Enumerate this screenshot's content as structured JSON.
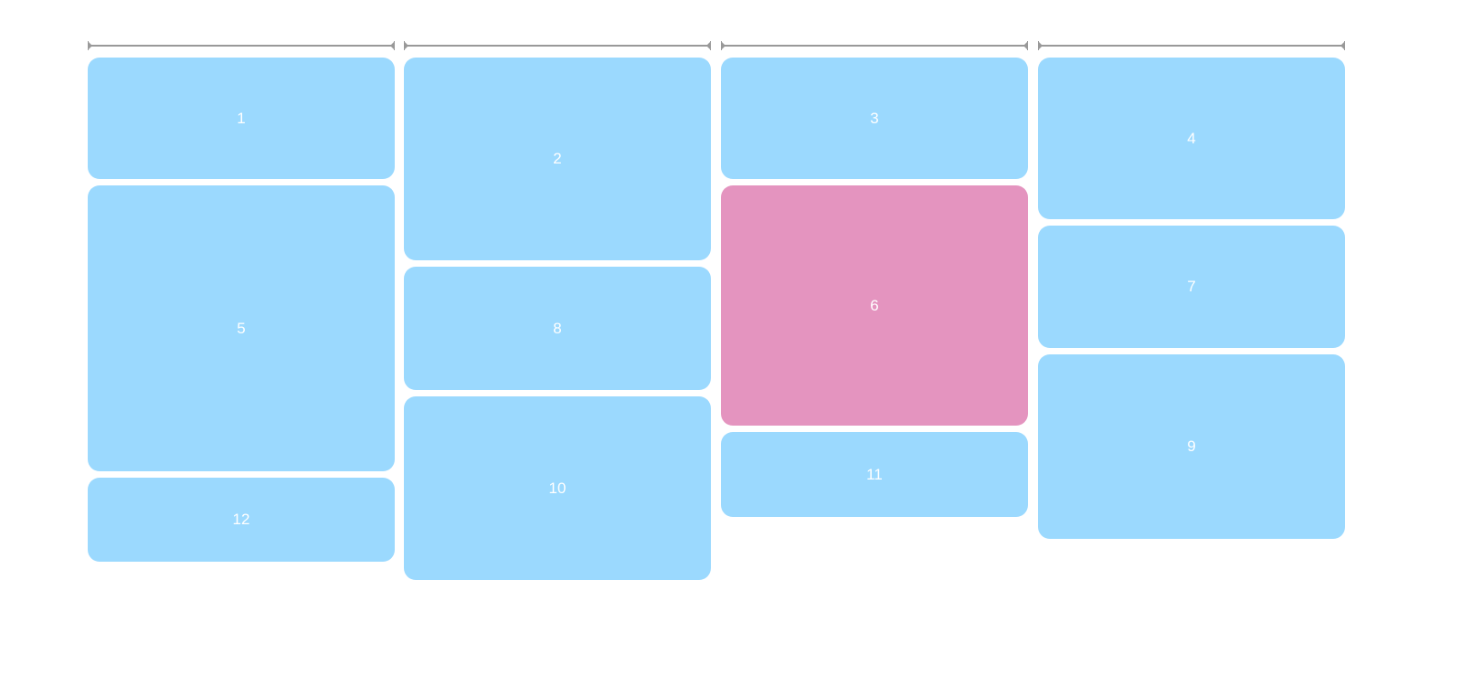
{
  "colors": {
    "tile": "#9bd9fe",
    "highlight": "#e494bf",
    "ruler": "#999999",
    "text": "#ffffff"
  },
  "columns": 4,
  "tiles": [
    {
      "label": "1",
      "column": 1,
      "highlighted": false
    },
    {
      "label": "2",
      "column": 2,
      "highlighted": false
    },
    {
      "label": "3",
      "column": 3,
      "highlighted": false
    },
    {
      "label": "4",
      "column": 4,
      "highlighted": false
    },
    {
      "label": "5",
      "column": 1,
      "highlighted": false
    },
    {
      "label": "6",
      "column": 3,
      "highlighted": true
    },
    {
      "label": "7",
      "column": 4,
      "highlighted": false
    },
    {
      "label": "8",
      "column": 2,
      "highlighted": false
    },
    {
      "label": "9",
      "column": 4,
      "highlighted": false
    },
    {
      "label": "10",
      "column": 2,
      "highlighted": false
    },
    {
      "label": "11",
      "column": 3,
      "highlighted": false
    },
    {
      "label": "12",
      "column": 1,
      "highlighted": false
    }
  ]
}
